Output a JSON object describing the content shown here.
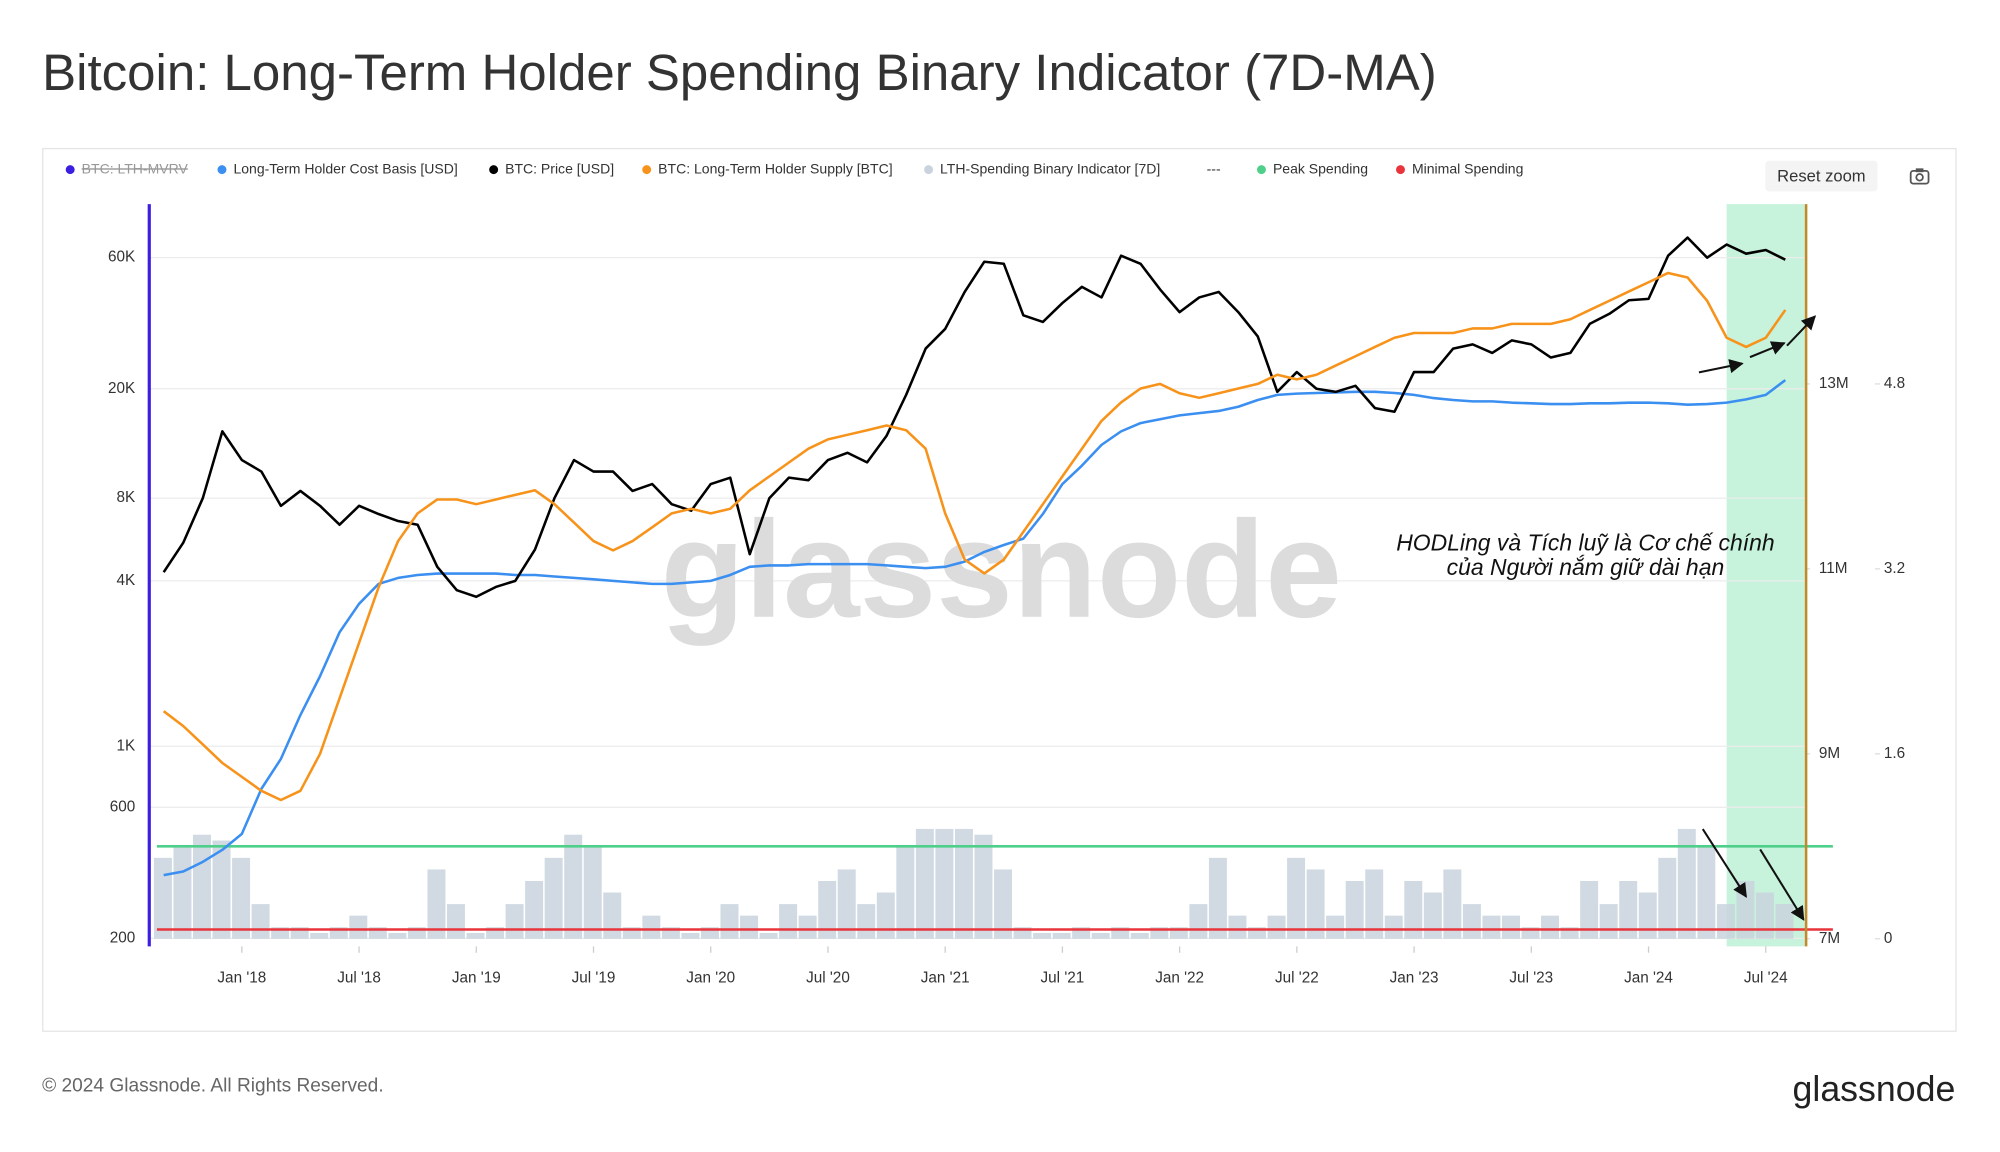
{
  "title": "Bitcoin: Long-Term Holder Spending Binary Indicator (7D-MA)",
  "toolbar": {
    "reset_zoom": "Reset zoom"
  },
  "chart_data": {
    "type": "line",
    "x": [
      "2017-09",
      "2017-10",
      "2017-11",
      "2017-12",
      "2018-01",
      "2018-02",
      "2018-03",
      "2018-04",
      "2018-05",
      "2018-06",
      "2018-07",
      "2018-08",
      "2018-09",
      "2018-10",
      "2018-11",
      "2018-12",
      "2019-01",
      "2019-02",
      "2019-03",
      "2019-04",
      "2019-05",
      "2019-06",
      "2019-07",
      "2019-08",
      "2019-09",
      "2019-10",
      "2019-11",
      "2019-12",
      "2020-01",
      "2020-02",
      "2020-03",
      "2020-04",
      "2020-05",
      "2020-06",
      "2020-07",
      "2020-08",
      "2020-09",
      "2020-10",
      "2020-11",
      "2020-12",
      "2021-01",
      "2021-02",
      "2021-03",
      "2021-04",
      "2021-05",
      "2021-06",
      "2021-07",
      "2021-08",
      "2021-09",
      "2021-10",
      "2021-11",
      "2021-12",
      "2022-01",
      "2022-02",
      "2022-03",
      "2022-04",
      "2022-05",
      "2022-06",
      "2022-07",
      "2022-08",
      "2022-09",
      "2022-10",
      "2022-11",
      "2022-12",
      "2023-01",
      "2023-02",
      "2023-03",
      "2023-04",
      "2023-05",
      "2023-06",
      "2023-07",
      "2023-08",
      "2023-09",
      "2023-10",
      "2023-11",
      "2023-12",
      "2024-01",
      "2024-02",
      "2024-03",
      "2024-04",
      "2024-05",
      "2024-06",
      "2024-07",
      "2024-08"
    ],
    "xlim": [
      "2017-08",
      "2024-09"
    ],
    "xticks": [
      {
        "value": "2018-01",
        "label": "Jan '18"
      },
      {
        "value": "2018-07",
        "label": "Jul '18"
      },
      {
        "value": "2019-01",
        "label": "Jan '19"
      },
      {
        "value": "2019-07",
        "label": "Jul '19"
      },
      {
        "value": "2020-01",
        "label": "Jan '20"
      },
      {
        "value": "2020-07",
        "label": "Jul '20"
      },
      {
        "value": "2021-01",
        "label": "Jan '21"
      },
      {
        "value": "2021-07",
        "label": "Jul '21"
      },
      {
        "value": "2022-01",
        "label": "Jan '22"
      },
      {
        "value": "2022-07",
        "label": "Jul '22"
      },
      {
        "value": "2023-01",
        "label": "Jan '23"
      },
      {
        "value": "2023-07",
        "label": "Jul '23"
      },
      {
        "value": "2024-01",
        "label": "Jan '24"
      },
      {
        "value": "2024-07",
        "label": "Jul '24"
      }
    ],
    "log_y": true,
    "ylim": [
      187,
      94000
    ],
    "yticks": [
      200,
      600,
      {
        "value": 1000,
        "label": "1K"
      },
      {
        "value": 4000,
        "label": "4K"
      },
      {
        "value": 8000,
        "label": "8K"
      },
      {
        "value": 20000,
        "label": "20K"
      },
      {
        "value": 60000,
        "label": "60K"
      }
    ],
    "y2lim": [
      6917000,
      14945000
    ],
    "y2ticks": [
      {
        "value": 7000000,
        "label": "7M"
      },
      {
        "value": 9000000,
        "label": "9M"
      },
      {
        "value": 11000000,
        "label": "11M"
      },
      {
        "value": 13000000,
        "label": "13M"
      }
    ],
    "y3lim": [
      -0.066,
      6.356
    ],
    "y3ticks": [
      0,
      1.6,
      3.2,
      4.8
    ],
    "grid": true,
    "series": [
      {
        "name": "Long-Term Holder Cost Basis [USD]",
        "color": "#3b8ff0",
        "axis": "y",
        "values": [
          340,
          350,
          380,
          420,
          480,
          700,
          900,
          1300,
          1800,
          2600,
          3300,
          3900,
          4100,
          4200,
          4250,
          4250,
          4250,
          4250,
          4200,
          4200,
          4150,
          4100,
          4050,
          4000,
          3950,
          3900,
          3900,
          3950,
          4000,
          4200,
          4500,
          4550,
          4550,
          4600,
          4600,
          4600,
          4600,
          4550,
          4500,
          4450,
          4500,
          4700,
          5100,
          5400,
          5700,
          7000,
          9000,
          10500,
          12500,
          14000,
          15000,
          15500,
          16000,
          16300,
          16600,
          17200,
          18200,
          19000,
          19200,
          19300,
          19400,
          19500,
          19500,
          19300,
          19000,
          18500,
          18200,
          18000,
          18000,
          17800,
          17700,
          17600,
          17600,
          17700,
          17700,
          17800,
          17800,
          17700,
          17500,
          17600,
          17800,
          18300,
          19000,
          21500
        ]
      },
      {
        "name": "BTC: Price [USD]",
        "color": "#000000",
        "axis": "y",
        "values": [
          4300,
          5500,
          8000,
          14000,
          11000,
          10000,
          7500,
          8500,
          7500,
          6400,
          7500,
          7000,
          6600,
          6400,
          4500,
          3700,
          3500,
          3800,
          4000,
          5200,
          8000,
          11000,
          10000,
          10000,
          8500,
          9000,
          7600,
          7200,
          9000,
          9500,
          5000,
          8000,
          9500,
          9300,
          11000,
          11700,
          10800,
          13500,
          19000,
          28000,
          33000,
          45000,
          58000,
          57000,
          37000,
          35000,
          41000,
          47000,
          43000,
          61000,
          57000,
          46000,
          38000,
          43000,
          45000,
          38000,
          31000,
          19500,
          23000,
          20000,
          19500,
          20500,
          17000,
          16500,
          23000,
          23000,
          28000,
          29000,
          27000,
          30000,
          29000,
          26000,
          27000,
          34500,
          37500,
          42000,
          42500,
          61000,
          71000,
          60000,
          67000,
          62000,
          64000,
          59000
        ]
      },
      {
        "name": "BTC: Long-Term Holder Supply [BTC]",
        "color": "#f7931a",
        "axis": "y2",
        "values": [
          9460000,
          9300000,
          9100000,
          8900000,
          8750000,
          8600000,
          8500000,
          8600000,
          9000000,
          9600000,
          10200000,
          10800000,
          11300000,
          11600000,
          11750000,
          11750000,
          11700000,
          11750000,
          11800000,
          11850000,
          11700000,
          11500000,
          11300000,
          11200000,
          11300000,
          11450000,
          11600000,
          11650000,
          11600000,
          11650000,
          11850000,
          12000000,
          12150000,
          12300000,
          12400000,
          12450000,
          12500000,
          12550000,
          12500000,
          12300000,
          11600000,
          11100000,
          10950000,
          11100000,
          11400000,
          11700000,
          12000000,
          12300000,
          12600000,
          12800000,
          12950000,
          13000000,
          12900000,
          12850000,
          12900000,
          12950000,
          13000000,
          13100000,
          13050000,
          13100000,
          13200000,
          13300000,
          13400000,
          13500000,
          13550000,
          13550000,
          13550000,
          13600000,
          13600000,
          13650000,
          13650000,
          13650000,
          13700000,
          13800000,
          13900000,
          14000000,
          14100000,
          14200000,
          14150000,
          13900000,
          13500000,
          13400000,
          13500000,
          13800000
        ]
      },
      {
        "name": "LTH-Spending Binary Indicator [7D]",
        "color": "#c9d3dd",
        "axis": "y3",
        "type": "bar",
        "values": [
          0.7,
          0.8,
          0.9,
          0.85,
          0.7,
          0.3,
          0.1,
          0.1,
          0.05,
          0.1,
          0.2,
          0.1,
          0.05,
          0.1,
          0.6,
          0.3,
          0.05,
          0.1,
          0.3,
          0.5,
          0.7,
          0.9,
          0.8,
          0.4,
          0.1,
          0.2,
          0.1,
          0.05,
          0.1,
          0.3,
          0.2,
          0.05,
          0.3,
          0.2,
          0.5,
          0.6,
          0.3,
          0.4,
          0.8,
          0.95,
          0.95,
          0.95,
          0.9,
          0.6,
          0.1,
          0.05,
          0.05,
          0.1,
          0.05,
          0.1,
          0.05,
          0.1,
          0.1,
          0.3,
          0.7,
          0.2,
          0.1,
          0.2,
          0.7,
          0.6,
          0.2,
          0.5,
          0.6,
          0.2,
          0.5,
          0.4,
          0.6,
          0.3,
          0.2,
          0.2,
          0.1,
          0.2,
          0.1,
          0.5,
          0.3,
          0.5,
          0.4,
          0.7,
          0.95,
          0.8,
          0.3,
          0.5,
          0.4,
          0.3
        ]
      }
    ],
    "legend_extra": [
      {
        "name": "BTC: LTH-MVRV",
        "color": "#3b1fe0",
        "hidden": true
      },
      {
        "name": "---"
      }
    ],
    "reference_lines": [
      {
        "name": "Peak Spending",
        "color": "#4fd08a",
        "value": 0.8,
        "axis": "y3"
      },
      {
        "name": "Minimal Spending",
        "color": "#e8343a",
        "value": 0.08,
        "axis": "y3"
      }
    ],
    "highlight": {
      "from": "2024-05",
      "to": "2024-09",
      "color": "#bdf0d6"
    },
    "annotation": [
      "HODLing và Tích luỹ là Cơ chế chính",
      "của Người nắm giữ dài hạn"
    ],
    "watermark": "glassnode"
  },
  "footer": {
    "copyright": "© 2024 Glassnode. All Rights Reserved.",
    "logo": "glassnode"
  }
}
